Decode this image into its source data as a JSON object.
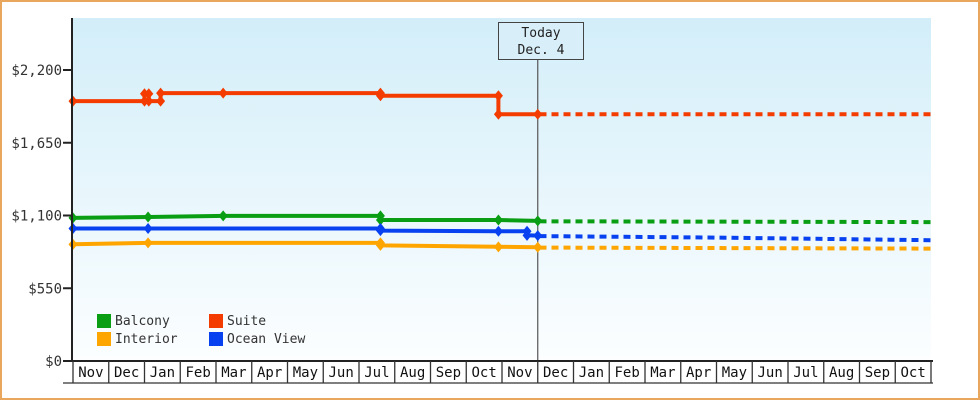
{
  "frame": {
    "border_color": "#E9A75E",
    "background": "#FFFFFF"
  },
  "chart_data": {
    "type": "line",
    "title": "",
    "plot_background": {
      "top": "#D3EEF9",
      "bottom": "#FCFEFF"
    },
    "y_axis": {
      "ticks": [
        {
          "label": "$0",
          "value": 0
        },
        {
          "label": "$550",
          "value": 550
        },
        {
          "label": "$1,100",
          "value": 1100
        },
        {
          "label": "$1,650",
          "value": 1650
        },
        {
          "label": "$2,200",
          "value": 2200
        }
      ],
      "visible_range": [
        0,
        2590
      ],
      "grid": false
    },
    "x_axis": {
      "unit": "month",
      "months": [
        "Nov",
        "Dec",
        "Jan",
        "Feb",
        "Mar",
        "Apr",
        "May",
        "Jun",
        "Jul",
        "Aug",
        "Sep",
        "Oct",
        "Nov",
        "Dec",
        "Jan",
        "Feb",
        "Mar",
        "Apr",
        "May",
        "Jun",
        "Jul",
        "Aug",
        "Sep",
        "Oct"
      ],
      "range_units": [
        0,
        24
      ]
    },
    "today": {
      "label_line1": "Today",
      "label_line2": "Dec. 4",
      "month_index": 13
    },
    "series": [
      {
        "name": "Balcony",
        "color": "#0A9E14",
        "solid": [
          [
            0,
            1082
          ],
          [
            2.1,
            1089
          ],
          [
            4.2,
            1097
          ],
          [
            8.6,
            1097
          ],
          [
            8.6,
            1066
          ],
          [
            11.9,
            1066
          ],
          [
            13,
            1059
          ]
        ],
        "markers": [
          [
            0,
            1082
          ],
          [
            2.1,
            1089
          ],
          [
            4.2,
            1097
          ],
          [
            8.6,
            1097
          ],
          [
            8.6,
            1066
          ],
          [
            11.9,
            1066
          ],
          [
            13,
            1059
          ]
        ],
        "dotted": [
          [
            13.05,
            1056
          ],
          [
            24,
            1050
          ]
        ]
      },
      {
        "name": "Suite",
        "color": "#F43C00",
        "solid": [
          [
            0,
            1965
          ],
          [
            2.0,
            1965
          ],
          [
            2.0,
            2020
          ],
          [
            2.12,
            2020
          ],
          [
            2.12,
            1965
          ],
          [
            2.45,
            1965
          ],
          [
            2.45,
            2025
          ],
          [
            8.6,
            2025
          ],
          [
            8.6,
            2005
          ],
          [
            11.9,
            2005
          ],
          [
            11.9,
            1865
          ],
          [
            13,
            1865
          ]
        ],
        "markers": [
          [
            0,
            1965
          ],
          [
            2.0,
            1965
          ],
          [
            2.0,
            2020
          ],
          [
            2.12,
            2020
          ],
          [
            2.12,
            1965
          ],
          [
            2.45,
            1965
          ],
          [
            2.45,
            2025
          ],
          [
            4.2,
            2025
          ],
          [
            8.6,
            2025
          ],
          [
            8.6,
            2005
          ],
          [
            11.9,
            2005
          ],
          [
            11.9,
            1865
          ],
          [
            13,
            1865
          ]
        ],
        "dotted": [
          [
            13.05,
            1865
          ],
          [
            24,
            1865
          ]
        ]
      },
      {
        "name": "Interior",
        "color": "#FFA500",
        "solid": [
          [
            0,
            882
          ],
          [
            2.1,
            893
          ],
          [
            8.6,
            893
          ],
          [
            8.6,
            874
          ],
          [
            11.9,
            863
          ],
          [
            13,
            860
          ]
        ],
        "markers": [
          [
            0,
            882
          ],
          [
            2.1,
            893
          ],
          [
            8.6,
            893
          ],
          [
            8.6,
            874
          ],
          [
            11.9,
            863
          ],
          [
            13,
            860
          ]
        ],
        "dotted": [
          [
            13.05,
            857
          ],
          [
            24,
            850
          ]
        ]
      },
      {
        "name": "Ocean View",
        "color": "#0841F0",
        "solid": [
          [
            0,
            1002
          ],
          [
            2.1,
            1002
          ],
          [
            8.6,
            1002
          ],
          [
            8.6,
            986
          ],
          [
            11.9,
            981
          ],
          [
            12.7,
            981
          ],
          [
            12.7,
            950
          ],
          [
            13,
            948
          ]
        ],
        "markers": [
          [
            0,
            1002
          ],
          [
            2.1,
            1002
          ],
          [
            8.6,
            1002
          ],
          [
            8.6,
            986
          ],
          [
            11.9,
            981
          ],
          [
            12.7,
            981
          ],
          [
            12.7,
            950
          ],
          [
            13,
            948
          ]
        ],
        "dotted": [
          [
            13.05,
            944
          ],
          [
            18,
            933
          ],
          [
            24,
            913
          ]
        ]
      }
    ],
    "legend": {
      "position": "bottom-left",
      "rows": [
        [
          "Balcony",
          "Suite"
        ],
        [
          "Interior",
          "Ocean View"
        ]
      ]
    },
    "axis_color": "#222222",
    "table_line_color": "#333333",
    "today_line_color": "#555555"
  }
}
